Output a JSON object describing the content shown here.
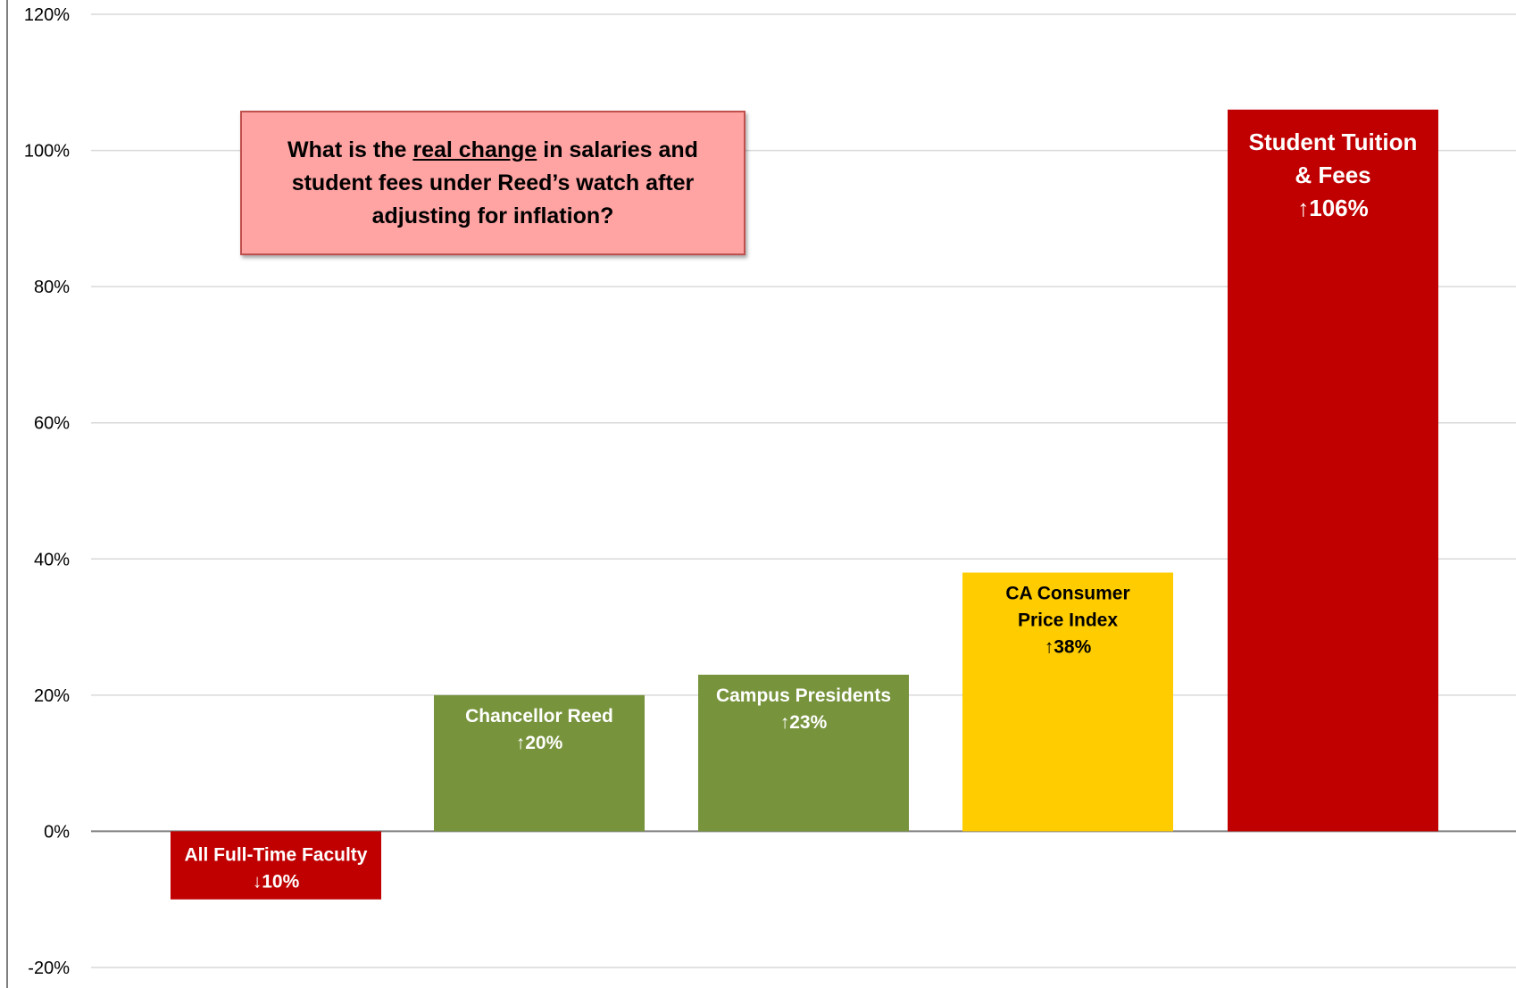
{
  "colors": {
    "red": "#c00000",
    "green": "#77933c",
    "yellow": "#ffcc00",
    "gridline": "#d9d9d9",
    "axis": "#7f7f7f",
    "callout_fill": "#ffa3a3",
    "callout_border": "#c0504d"
  },
  "callout": {
    "before": "What is the ",
    "underlined": "real change",
    "after": " in salaries and student fees under Reed’s watch after adjusting for inflation?"
  },
  "chart_data": {
    "type": "bar",
    "title": "",
    "xlabel": "",
    "ylabel": "",
    "ylim": [
      -0.2,
      1.2
    ],
    "yticks": [
      {
        "value": -0.2,
        "label": "-20%"
      },
      {
        "value": 0.0,
        "label": "0%"
      },
      {
        "value": 0.2,
        "label": "20%"
      },
      {
        "value": 0.4,
        "label": "40%"
      },
      {
        "value": 0.6,
        "label": "60%"
      },
      {
        "value": 0.8,
        "label": "80%"
      },
      {
        "value": 1.0,
        "label": "100%"
      },
      {
        "value": 1.2,
        "label": "120%"
      }
    ],
    "grid": true,
    "legend": "none",
    "categories": [
      "All Full-Time Faculty",
      "Chancellor Reed",
      "Campus Presidents",
      "CA Consumer Price Index",
      "Student Tuition & Fees"
    ],
    "values": [
      -0.1,
      0.2,
      0.23,
      0.38,
      1.06
    ],
    "bars": [
      {
        "value": -0.1,
        "color": "#c00000",
        "text_color": "#ffffff",
        "label_lines": [
          "All Full-Time Faculty",
          "↓10%"
        ]
      },
      {
        "value": 0.2,
        "color": "#77933c",
        "text_color": "#ffffff",
        "label_lines": [
          "Chancellor Reed",
          "↑20%"
        ]
      },
      {
        "value": 0.23,
        "color": "#77933c",
        "text_color": "#ffffff",
        "label_lines": [
          "Campus Presidents",
          "↑23%"
        ]
      },
      {
        "value": 0.38,
        "color": "#ffcc00",
        "text_color": "#000000",
        "label_lines": [
          "CA Consumer",
          "Price Index",
          "↑38%"
        ]
      },
      {
        "value": 1.06,
        "color": "#c00000",
        "text_color": "#ffffff",
        "label_lines": [
          "Student Tuition",
          "& Fees",
          "↑106%"
        ]
      }
    ]
  }
}
